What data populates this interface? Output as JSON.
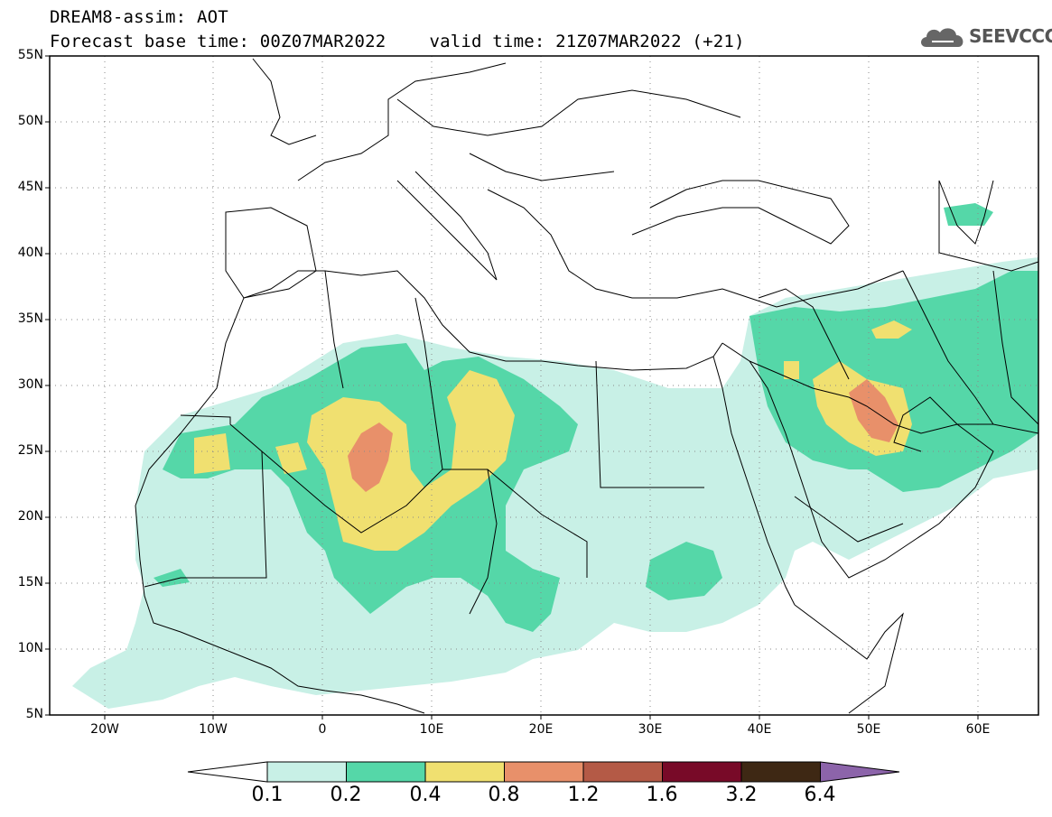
{
  "title": {
    "line1": "DREAM8-assim: AOT",
    "line2_base": "Forecast base time: 00Z07MAR2022",
    "line2_valid": "valid time: 21Z07MAR2022 (+21)"
  },
  "logo": {
    "text": "SEEVCCC",
    "icon": "cloud-icon"
  },
  "axes": {
    "lat_labels": [
      "55N",
      "50N",
      "45N",
      "40N",
      "35N",
      "30N",
      "25N",
      "20N",
      "15N",
      "10N",
      "5N"
    ],
    "lon_labels": [
      "20W",
      "10W",
      "0",
      "10E",
      "20E",
      "30E",
      "40E",
      "50E",
      "60E"
    ],
    "lat_range": [
      5,
      55
    ],
    "lon_range": [
      -25,
      65
    ],
    "grid": "dotted"
  },
  "colorbar": {
    "labels": [
      "0.1",
      "0.2",
      "0.4",
      "0.8",
      "1.2",
      "1.6",
      "3.2",
      "6.4"
    ],
    "colors": [
      "#ffffff",
      "#c8f0e6",
      "#55d7a8",
      "#f0e070",
      "#e8906a",
      "#b45a46",
      "#780a28",
      "#3e2814",
      "#8c64aa"
    ]
  }
}
